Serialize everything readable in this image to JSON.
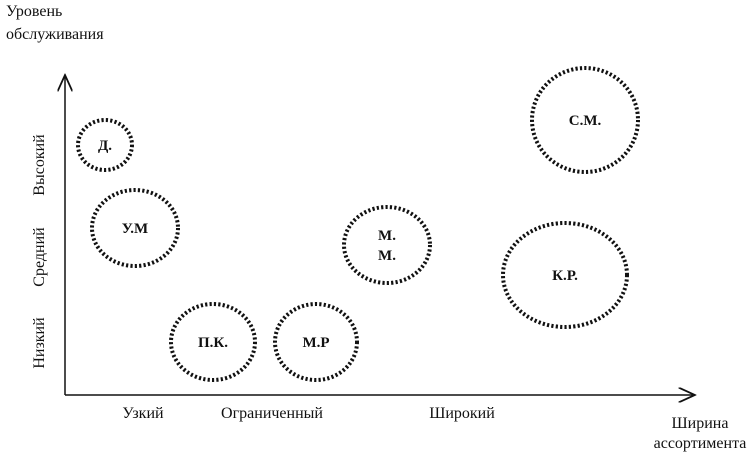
{
  "axes": {
    "y_title": [
      "Уровень",
      "обслуживания"
    ],
    "y_levels": [
      "Высокий",
      "Средний",
      "Низкий"
    ],
    "x_levels": [
      "Узкий",
      "Ограниченный",
      "Широкий"
    ],
    "x_title": [
      "Ширина",
      "ассортимента"
    ]
  },
  "nodes": [
    {
      "label": [
        "Д."
      ]
    },
    {
      "label": [
        "У.М"
      ]
    },
    {
      "label": [
        "П.К."
      ]
    },
    {
      "label": [
        "М.Р"
      ]
    },
    {
      "label": [
        "М.",
        "М."
      ]
    },
    {
      "label": [
        "С.М."
      ]
    },
    {
      "label": [
        "К.Р."
      ]
    }
  ]
}
